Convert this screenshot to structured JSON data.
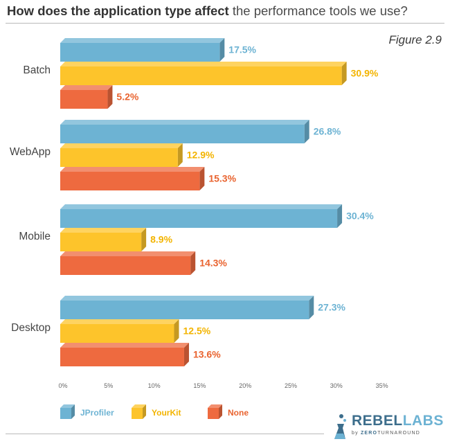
{
  "title": {
    "bold": "How does the application type affect",
    "rest": " the performance tools we use?"
  },
  "figure_label": "Figure 2.9",
  "logo": {
    "main1": "REBEL",
    "main2": "LABS",
    "sub_prefix": "by ",
    "sub_bold": "ZERO",
    "sub_rest": "TURNAROUND"
  },
  "chart_data": {
    "type": "bar",
    "orientation": "horizontal",
    "categories": [
      "Batch",
      "WebApp",
      "Mobile",
      "Desktop"
    ],
    "series": [
      {
        "name": "JProfiler",
        "color": "#6db3d3",
        "values": [
          17.5,
          26.8,
          30.4,
          27.3
        ]
      },
      {
        "name": "YourKit",
        "color": "#fdc42b",
        "values": [
          30.9,
          12.9,
          8.9,
          12.5
        ]
      },
      {
        "name": "None",
        "color": "#ee6a3f",
        "values": [
          5.2,
          15.3,
          14.3,
          13.6
        ]
      }
    ],
    "value_format": "%",
    "xlim": [
      0,
      35
    ],
    "xticks": [
      0,
      5,
      10,
      15,
      20,
      25,
      30,
      35
    ],
    "xtick_labels": [
      "0%",
      "5%",
      "10%",
      "15%",
      "20%",
      "25%",
      "30%",
      "35%"
    ],
    "grid": false,
    "legend_position": "bottom-left"
  }
}
